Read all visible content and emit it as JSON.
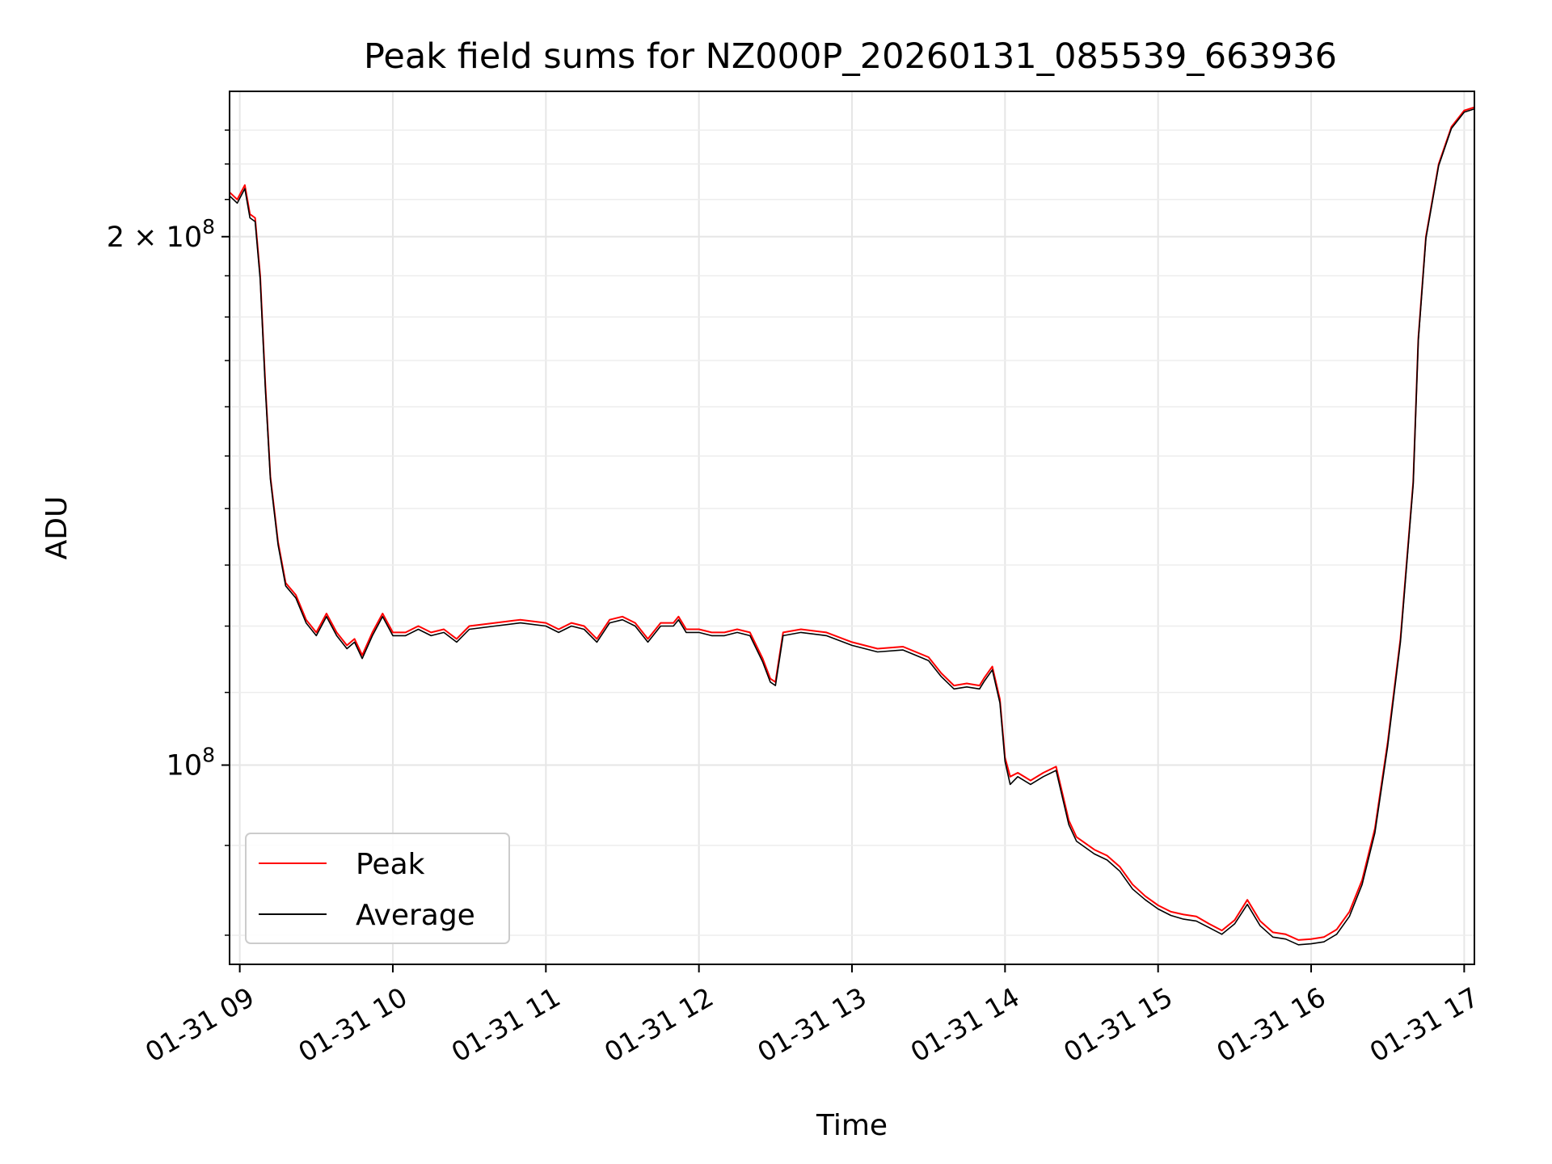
{
  "chart_data": {
    "type": "line",
    "title": "Peak field sums for NZ000P_20260131_085539_663936",
    "xlabel": "Time",
    "ylabel": "ADU",
    "y_scale": "log",
    "grid": true,
    "legend_position": "lower-left",
    "x_ticks": [
      "01-31 09",
      "01-31 10",
      "01-31 11",
      "01-31 12",
      "01-31 13",
      "01-31 14",
      "01-31 15",
      "01-31 16",
      "01-31 17"
    ],
    "y_ticks": [
      {
        "value": 100000000,
        "label_base": "10",
        "label_exp": "8",
        "label_coef": ""
      },
      {
        "value": 200000000,
        "label_base": "10",
        "label_exp": "8",
        "label_coef": "2 × "
      }
    ],
    "xlim": [
      "2026-01-31 08:56",
      "2026-01-31 17:04"
    ],
    "ylim": [
      77000000,
      242000000
    ],
    "series": [
      {
        "name": "Peak",
        "color": "#ff0000",
        "points": [
          [
            "2026-01-31 08:56",
            212000000
          ],
          [
            "2026-01-31 08:59",
            210000000
          ],
          [
            "2026-01-31 09:02",
            214000000
          ],
          [
            "2026-01-31 09:04",
            206000000
          ],
          [
            "2026-01-31 09:06",
            205000000
          ],
          [
            "2026-01-31 09:08",
            190000000
          ],
          [
            "2026-01-31 09:10",
            165000000
          ],
          [
            "2026-01-31 09:12",
            146000000
          ],
          [
            "2026-01-31 09:15",
            134000000
          ],
          [
            "2026-01-31 09:18",
            127000000
          ],
          [
            "2026-01-31 09:22",
            125000000
          ],
          [
            "2026-01-31 09:26",
            121000000
          ],
          [
            "2026-01-31 09:30",
            119000000
          ],
          [
            "2026-01-31 09:34",
            122000000
          ],
          [
            "2026-01-31 09:38",
            119000000
          ],
          [
            "2026-01-31 09:42",
            117000000
          ],
          [
            "2026-01-31 09:45",
            118000000
          ],
          [
            "2026-01-31 09:48",
            115500000
          ],
          [
            "2026-01-31 09:52",
            119000000
          ],
          [
            "2026-01-31 09:56",
            122000000
          ],
          [
            "2026-01-31 10:00",
            119000000
          ],
          [
            "2026-01-31 10:05",
            119000000
          ],
          [
            "2026-01-31 10:10",
            120000000
          ],
          [
            "2026-01-31 10:15",
            119000000
          ],
          [
            "2026-01-31 10:20",
            119500000
          ],
          [
            "2026-01-31 10:25",
            118000000
          ],
          [
            "2026-01-31 10:30",
            120000000
          ],
          [
            "2026-01-31 10:40",
            120500000
          ],
          [
            "2026-01-31 10:50",
            121000000
          ],
          [
            "2026-01-31 11:00",
            120500000
          ],
          [
            "2026-01-31 11:05",
            119500000
          ],
          [
            "2026-01-31 11:10",
            120500000
          ],
          [
            "2026-01-31 11:15",
            120000000
          ],
          [
            "2026-01-31 11:20",
            118000000
          ],
          [
            "2026-01-31 11:25",
            121000000
          ],
          [
            "2026-01-31 11:30",
            121500000
          ],
          [
            "2026-01-31 11:35",
            120500000
          ],
          [
            "2026-01-31 11:40",
            118000000
          ],
          [
            "2026-01-31 11:45",
            120500000
          ],
          [
            "2026-01-31 11:50",
            120500000
          ],
          [
            "2026-01-31 11:52",
            121500000
          ],
          [
            "2026-01-31 11:55",
            119500000
          ],
          [
            "2026-01-31 12:00",
            119500000
          ],
          [
            "2026-01-31 12:05",
            119000000
          ],
          [
            "2026-01-31 12:10",
            119000000
          ],
          [
            "2026-01-31 12:15",
            119500000
          ],
          [
            "2026-01-31 12:20",
            119000000
          ],
          [
            "2026-01-31 12:25",
            115000000
          ],
          [
            "2026-01-31 12:28",
            112000000
          ],
          [
            "2026-01-31 12:30",
            111500000
          ],
          [
            "2026-01-31 12:33",
            119000000
          ],
          [
            "2026-01-31 12:40",
            119500000
          ],
          [
            "2026-01-31 12:50",
            119000000
          ],
          [
            "2026-01-31 13:00",
            117500000
          ],
          [
            "2026-01-31 13:10",
            116500000
          ],
          [
            "2026-01-31 13:20",
            116800000
          ],
          [
            "2026-01-31 13:30",
            115200000
          ],
          [
            "2026-01-31 13:35",
            112800000
          ],
          [
            "2026-01-31 13:40",
            111000000
          ],
          [
            "2026-01-31 13:45",
            111300000
          ],
          [
            "2026-01-31 13:50",
            111000000
          ],
          [
            "2026-01-31 13:52",
            112200000
          ],
          [
            "2026-01-31 13:55",
            113800000
          ],
          [
            "2026-01-31 13:58",
            109000000
          ],
          [
            "2026-01-31 14:00",
            101000000
          ],
          [
            "2026-01-31 14:02",
            98500000
          ],
          [
            "2026-01-31 14:05",
            99000000
          ],
          [
            "2026-01-31 14:10",
            98000000
          ],
          [
            "2026-01-31 14:15",
            99000000
          ],
          [
            "2026-01-31 14:20",
            99800000
          ],
          [
            "2026-01-31 14:25",
            93000000
          ],
          [
            "2026-01-31 14:28",
            91000000
          ],
          [
            "2026-01-31 14:35",
            89500000
          ],
          [
            "2026-01-31 14:40",
            88800000
          ],
          [
            "2026-01-31 14:45",
            87500000
          ],
          [
            "2026-01-31 14:50",
            85500000
          ],
          [
            "2026-01-31 14:55",
            84200000
          ],
          [
            "2026-01-31 15:00",
            83200000
          ],
          [
            "2026-01-31 15:05",
            82500000
          ],
          [
            "2026-01-31 15:10",
            82200000
          ],
          [
            "2026-01-31 15:15",
            82000000
          ],
          [
            "2026-01-31 15:20",
            81200000
          ],
          [
            "2026-01-31 15:25",
            80500000
          ],
          [
            "2026-01-31 15:30",
            81600000
          ],
          [
            "2026-01-31 15:35",
            83800000
          ],
          [
            "2026-01-31 15:40",
            81500000
          ],
          [
            "2026-01-31 15:45",
            80300000
          ],
          [
            "2026-01-31 15:50",
            80100000
          ],
          [
            "2026-01-31 15:55",
            79500000
          ],
          [
            "2026-01-31 16:00",
            79600000
          ],
          [
            "2026-01-31 16:05",
            79800000
          ],
          [
            "2026-01-31 16:10",
            80600000
          ],
          [
            "2026-01-31 16:15",
            82500000
          ],
          [
            "2026-01-31 16:20",
            86000000
          ],
          [
            "2026-01-31 16:25",
            92000000
          ],
          [
            "2026-01-31 16:30",
            103000000
          ],
          [
            "2026-01-31 16:35",
            118000000
          ],
          [
            "2026-01-31 16:40",
            145000000
          ],
          [
            "2026-01-31 16:42",
            175000000
          ],
          [
            "2026-01-31 16:45",
            200000000
          ],
          [
            "2026-01-31 16:50",
            220000000
          ],
          [
            "2026-01-31 16:55",
            231000000
          ],
          [
            "2026-01-31 17:00",
            236000000
          ],
          [
            "2026-01-31 17:04",
            237000000
          ]
        ]
      },
      {
        "name": "Average",
        "color": "#000000",
        "points": [
          [
            "2026-01-31 08:56",
            211000000
          ],
          [
            "2026-01-31 08:59",
            209000000
          ],
          [
            "2026-01-31 09:02",
            213000000
          ],
          [
            "2026-01-31 09:04",
            205000000
          ],
          [
            "2026-01-31 09:06",
            204000000
          ],
          [
            "2026-01-31 09:08",
            189000000
          ],
          [
            "2026-01-31 09:10",
            164000000
          ],
          [
            "2026-01-31 09:12",
            145500000
          ],
          [
            "2026-01-31 09:15",
            133500000
          ],
          [
            "2026-01-31 09:18",
            126500000
          ],
          [
            "2026-01-31 09:22",
            124500000
          ],
          [
            "2026-01-31 09:26",
            120500000
          ],
          [
            "2026-01-31 09:30",
            118500000
          ],
          [
            "2026-01-31 09:34",
            121500000
          ],
          [
            "2026-01-31 09:38",
            118500000
          ],
          [
            "2026-01-31 09:42",
            116500000
          ],
          [
            "2026-01-31 09:45",
            117500000
          ],
          [
            "2026-01-31 09:48",
            115000000
          ],
          [
            "2026-01-31 09:52",
            118500000
          ],
          [
            "2026-01-31 09:56",
            121500000
          ],
          [
            "2026-01-31 10:00",
            118500000
          ],
          [
            "2026-01-31 10:05",
            118500000
          ],
          [
            "2026-01-31 10:10",
            119500000
          ],
          [
            "2026-01-31 10:15",
            118500000
          ],
          [
            "2026-01-31 10:20",
            119000000
          ],
          [
            "2026-01-31 10:25",
            117500000
          ],
          [
            "2026-01-31 10:30",
            119500000
          ],
          [
            "2026-01-31 10:40",
            120000000
          ],
          [
            "2026-01-31 10:50",
            120500000
          ],
          [
            "2026-01-31 11:00",
            120000000
          ],
          [
            "2026-01-31 11:05",
            119000000
          ],
          [
            "2026-01-31 11:10",
            120000000
          ],
          [
            "2026-01-31 11:15",
            119500000
          ],
          [
            "2026-01-31 11:20",
            117500000
          ],
          [
            "2026-01-31 11:25",
            120500000
          ],
          [
            "2026-01-31 11:30",
            121000000
          ],
          [
            "2026-01-31 11:35",
            120000000
          ],
          [
            "2026-01-31 11:40",
            117500000
          ],
          [
            "2026-01-31 11:45",
            120000000
          ],
          [
            "2026-01-31 11:50",
            120000000
          ],
          [
            "2026-01-31 11:52",
            121000000
          ],
          [
            "2026-01-31 11:55",
            119000000
          ],
          [
            "2026-01-31 12:00",
            119000000
          ],
          [
            "2026-01-31 12:05",
            118500000
          ],
          [
            "2026-01-31 12:10",
            118500000
          ],
          [
            "2026-01-31 12:15",
            119000000
          ],
          [
            "2026-01-31 12:20",
            118500000
          ],
          [
            "2026-01-31 12:25",
            114500000
          ],
          [
            "2026-01-31 12:28",
            111500000
          ],
          [
            "2026-01-31 12:30",
            111000000
          ],
          [
            "2026-01-31 12:33",
            118500000
          ],
          [
            "2026-01-31 12:40",
            119000000
          ],
          [
            "2026-01-31 12:50",
            118500000
          ],
          [
            "2026-01-31 13:00",
            117000000
          ],
          [
            "2026-01-31 13:10",
            116000000
          ],
          [
            "2026-01-31 13:20",
            116300000
          ],
          [
            "2026-01-31 13:30",
            114700000
          ],
          [
            "2026-01-31 13:35",
            112300000
          ],
          [
            "2026-01-31 13:40",
            110500000
          ],
          [
            "2026-01-31 13:45",
            110800000
          ],
          [
            "2026-01-31 13:50",
            110500000
          ],
          [
            "2026-01-31 13:52",
            111700000
          ],
          [
            "2026-01-31 13:55",
            113300000
          ],
          [
            "2026-01-31 13:58",
            108500000
          ],
          [
            "2026-01-31 14:00",
            100500000
          ],
          [
            "2026-01-31 14:02",
            97500000
          ],
          [
            "2026-01-31 14:05",
            98500000
          ],
          [
            "2026-01-31 14:10",
            97500000
          ],
          [
            "2026-01-31 14:15",
            98500000
          ],
          [
            "2026-01-31 14:20",
            99300000
          ],
          [
            "2026-01-31 14:25",
            92500000
          ],
          [
            "2026-01-31 14:28",
            90500000
          ],
          [
            "2026-01-31 14:35",
            89000000
          ],
          [
            "2026-01-31 14:40",
            88300000
          ],
          [
            "2026-01-31 14:45",
            87000000
          ],
          [
            "2026-01-31 14:50",
            85000000
          ],
          [
            "2026-01-31 14:55",
            83800000
          ],
          [
            "2026-01-31 15:00",
            82800000
          ],
          [
            "2026-01-31 15:05",
            82100000
          ],
          [
            "2026-01-31 15:10",
            81700000
          ],
          [
            "2026-01-31 15:15",
            81500000
          ],
          [
            "2026-01-31 15:20",
            80800000
          ],
          [
            "2026-01-31 15:25",
            80100000
          ],
          [
            "2026-01-31 15:30",
            81200000
          ],
          [
            "2026-01-31 15:35",
            83300000
          ],
          [
            "2026-01-31 15:40",
            81000000
          ],
          [
            "2026-01-31 15:45",
            79800000
          ],
          [
            "2026-01-31 15:50",
            79600000
          ],
          [
            "2026-01-31 15:55",
            79000000
          ],
          [
            "2026-01-31 16:00",
            79100000
          ],
          [
            "2026-01-31 16:05",
            79300000
          ],
          [
            "2026-01-31 16:10",
            80100000
          ],
          [
            "2026-01-31 16:15",
            82000000
          ],
          [
            "2026-01-31 16:20",
            85500000
          ],
          [
            "2026-01-31 16:25",
            91500000
          ],
          [
            "2026-01-31 16:30",
            102500000
          ],
          [
            "2026-01-31 16:35",
            117500000
          ],
          [
            "2026-01-31 16:40",
            144500000
          ],
          [
            "2026-01-31 16:42",
            174500000
          ],
          [
            "2026-01-31 16:45",
            199500000
          ],
          [
            "2026-01-31 16:50",
            219500000
          ],
          [
            "2026-01-31 16:55",
            230500000
          ],
          [
            "2026-01-31 17:00",
            235500000
          ],
          [
            "2026-01-31 17:04",
            236500000
          ]
        ]
      }
    ]
  }
}
